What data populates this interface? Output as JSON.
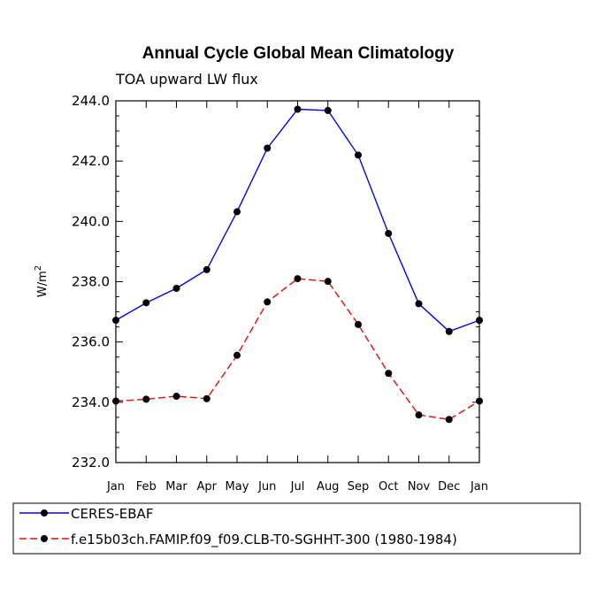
{
  "chart_data": {
    "type": "line",
    "title": "Annual Cycle Global Mean Climatology",
    "subtitle": "TOA upward LW flux",
    "xlabel": "",
    "ylabel_base": "W/m",
    "ylabel_superscript": "2",
    "ylim": [
      232.0,
      244.0
    ],
    "yticks": [
      "232.0",
      "234.0",
      "236.0",
      "238.0",
      "240.0",
      "242.0",
      "244.0"
    ],
    "categories": [
      "Jan",
      "Feb",
      "Mar",
      "Apr",
      "May",
      "Jun",
      "Jul",
      "Aug",
      "Sep",
      "Oct",
      "Nov",
      "Dec",
      "Jan"
    ],
    "series": [
      {
        "name": "CERES-EBAF",
        "color": "#0000ff",
        "dash": "solid",
        "values": [
          236.72,
          237.3,
          237.78,
          238.4,
          240.32,
          242.43,
          243.72,
          243.68,
          242.2,
          239.6,
          237.27,
          236.35,
          236.72
        ]
      },
      {
        "name": "f.e15b03ch.FAMIP.f09_f09.CLB-T0-SGHHT-300 (1980-1984)",
        "color": "#ff0000",
        "dash": "dashed",
        "values": [
          234.04,
          234.1,
          234.2,
          234.12,
          235.56,
          237.33,
          238.1,
          238.01,
          236.58,
          234.96,
          233.58,
          233.43,
          234.04
        ]
      }
    ]
  }
}
